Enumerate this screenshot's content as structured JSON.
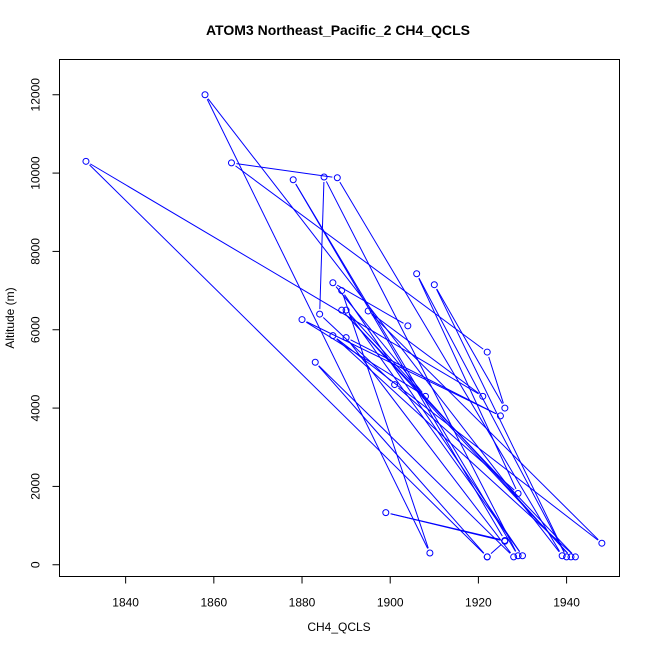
{
  "chart_data": {
    "type": "line",
    "title": "ATOM3 Northeast_Pacific_2 CH4_QCLS",
    "xlabel": "CH4_QCLS",
    "ylabel": "Altitude (m)",
    "xlim": [
      1825,
      1952
    ],
    "ylim": [
      -300,
      12900
    ],
    "xticks": [
      1840,
      1860,
      1880,
      1900,
      1920,
      1940
    ],
    "yticks": [
      0,
      2000,
      4000,
      6000,
      8000,
      10000,
      12000
    ],
    "grid": false,
    "line_color": "#0000ff",
    "marker": "open-circle",
    "series": [
      {
        "x": [
          1922,
          1926,
          1899,
          1926,
          1878,
          1929,
          1885,
          1884,
          1901,
          1929,
          1906,
          1940,
          1910,
          1926,
          1922,
          1864,
          1888,
          1939,
          1858,
          1909,
          1889,
          1930,
          1890,
          1941,
          1889,
          1942,
          1887,
          1948,
          1895,
          1921,
          1831,
          1922,
          1883,
          1928,
          1890,
          1925,
          1880,
          1908,
          1887,
          1904
        ],
        "y": [
          200,
          600,
          1330,
          620,
          9830,
          230,
          9900,
          6400,
          4600,
          1820,
          7430,
          200,
          7150,
          4000,
          5430,
          10260,
          9880,
          230,
          12000,
          300,
          7000,
          230,
          6500,
          200,
          6500,
          200,
          5850,
          550,
          6480,
          4300,
          10300,
          200,
          5170,
          200,
          5800,
          3800,
          6260,
          4300,
          7200,
          6100
        ]
      }
    ]
  }
}
